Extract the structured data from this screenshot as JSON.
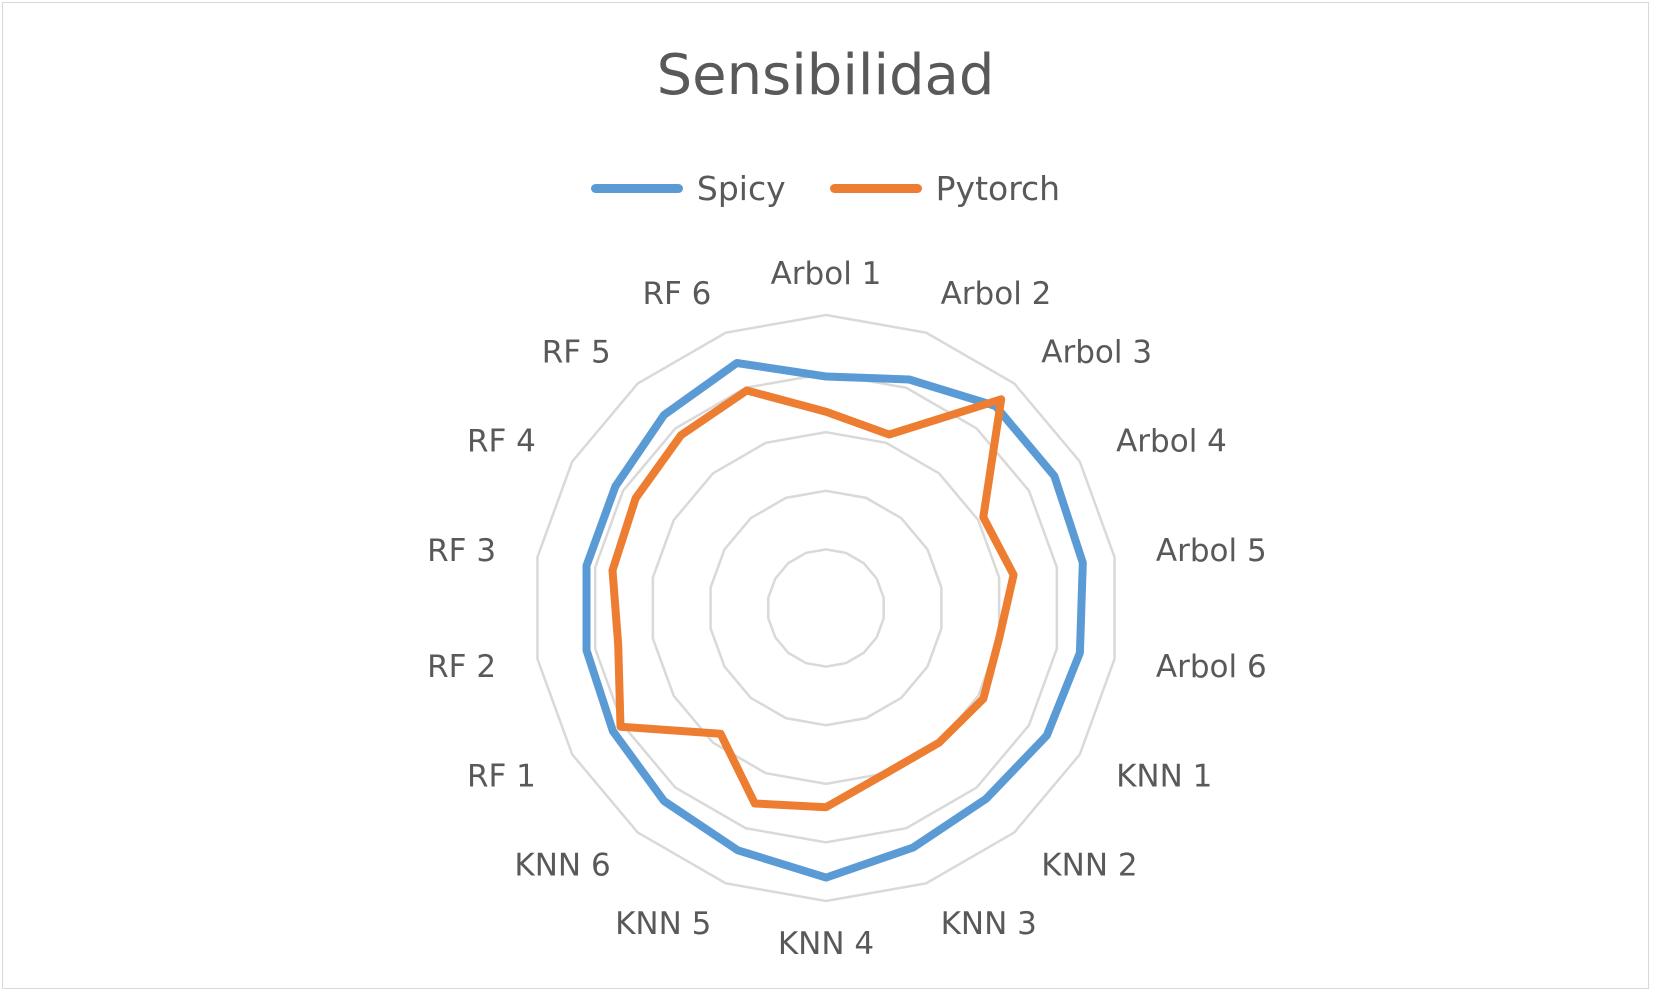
{
  "chart_data": {
    "type": "radar",
    "title": "Sensibilidad",
    "categories": [
      "Arbol 1",
      "Arbol 2",
      "Arbol 3",
      "Arbol 4",
      "Arbol 5",
      "Arbol 6",
      "KNN 1",
      "KNN 2",
      "KNN 3",
      "KNN 4",
      "KNN 5",
      "KNN 6",
      "RF 1",
      "RF 2",
      "RF 3",
      "RF 4",
      "RF 5",
      "RF 6"
    ],
    "series": [
      {
        "name": "Spicy",
        "color": "#5b9bd5",
        "values": [
          0.79,
          0.83,
          0.9,
          0.9,
          0.89,
          0.88,
          0.87,
          0.85,
          0.87,
          0.92,
          0.88,
          0.86,
          0.84,
          0.83,
          0.83,
          0.83,
          0.86,
          0.89
        ]
      },
      {
        "name": "Pytorch",
        "color": "#ed7d31",
        "values": [
          0.67,
          0.63,
          0.93,
          0.62,
          0.65,
          0.6,
          0.62,
          0.6,
          0.6,
          0.68,
          0.71,
          0.56,
          0.81,
          0.72,
          0.74,
          0.75,
          0.77,
          0.79
        ]
      }
    ],
    "rlim": [
      0,
      1
    ],
    "rings": 5,
    "grid": true,
    "legend_position": "top"
  }
}
